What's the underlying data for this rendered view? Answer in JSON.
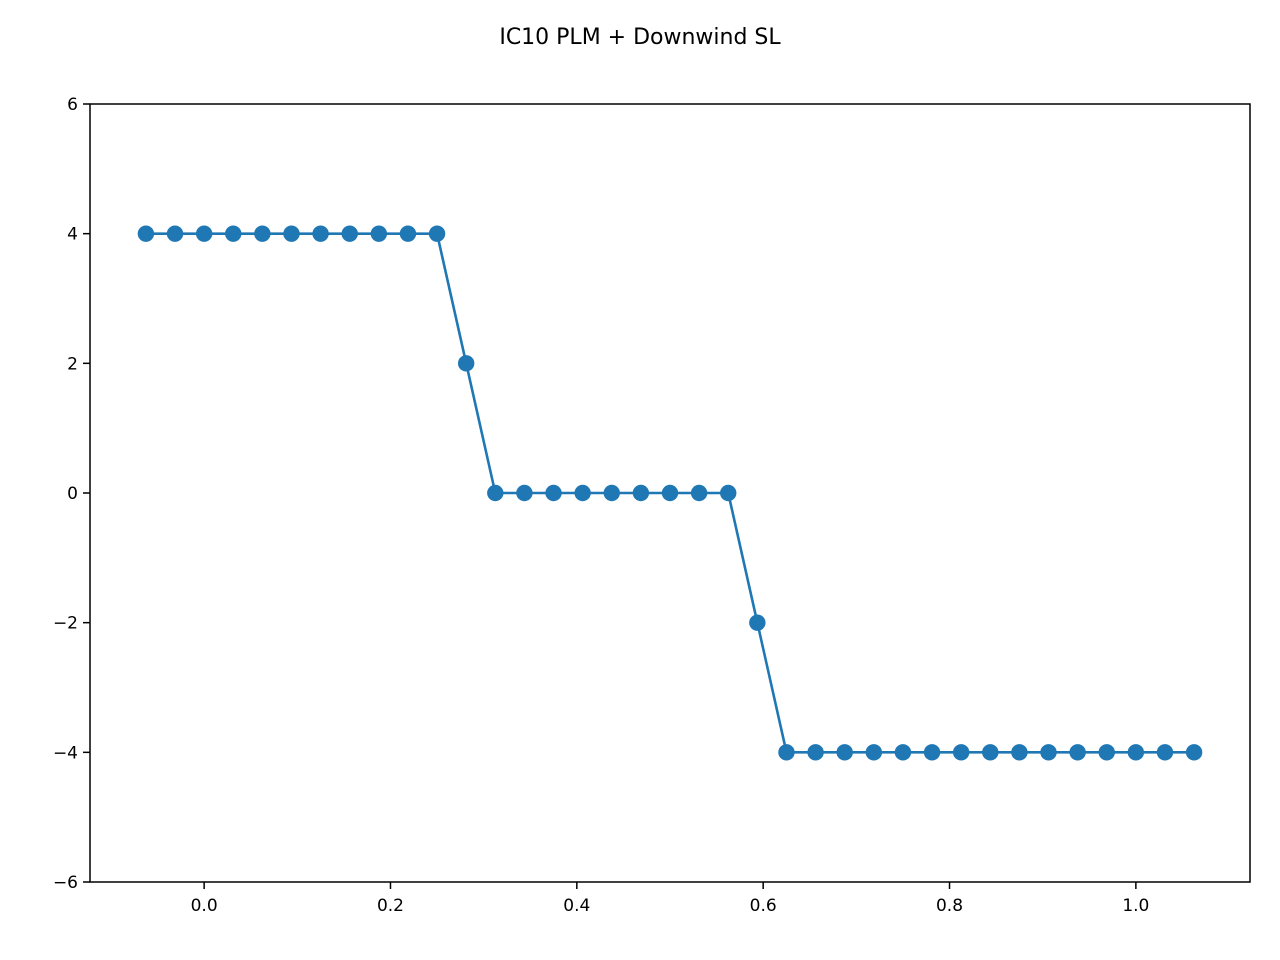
{
  "chart_data": {
    "type": "line",
    "title": "IC10 PLM + Downwind SL",
    "xlabel": "",
    "ylabel": "",
    "xlim": [
      -0.1225,
      1.1225
    ],
    "ylim": [
      -6,
      6
    ],
    "xticks": [
      0.0,
      0.2,
      0.4,
      0.6,
      0.8,
      1.0
    ],
    "xtick_labels": [
      "0.0",
      "0.2",
      "0.4",
      "0.6",
      "0.8",
      "1.0"
    ],
    "yticks": [
      -6,
      -4,
      -2,
      0,
      2,
      4,
      6
    ],
    "ytick_labels": [
      "−6",
      "−4",
      "−2",
      "0",
      "2",
      "4",
      "6"
    ],
    "grid": false,
    "series": [
      {
        "color": "#1f77b4",
        "marker": "circle",
        "x": [
          -0.0625,
          -0.03125,
          0.0,
          0.03125,
          0.0625,
          0.09375,
          0.125,
          0.15625,
          0.1875,
          0.21875,
          0.25,
          0.28125,
          0.3125,
          0.34375,
          0.375,
          0.40625,
          0.4375,
          0.46875,
          0.5,
          0.53125,
          0.5625,
          0.59375,
          0.625,
          0.65625,
          0.6875,
          0.71875,
          0.75,
          0.78125,
          0.8125,
          0.84375,
          0.875,
          0.90625,
          0.9375,
          0.96875,
          1.0,
          1.03125,
          1.0625
        ],
        "y": [
          4,
          4,
          4,
          4,
          4,
          4,
          4,
          4,
          4,
          4,
          4,
          2,
          0,
          0,
          0,
          0,
          0,
          0,
          0,
          0,
          0,
          -2,
          -4,
          -4,
          -4,
          -4,
          -4,
          -4,
          -4,
          -4,
          -4,
          -4,
          -4,
          -4,
          -4,
          -4,
          -4
        ]
      }
    ]
  }
}
